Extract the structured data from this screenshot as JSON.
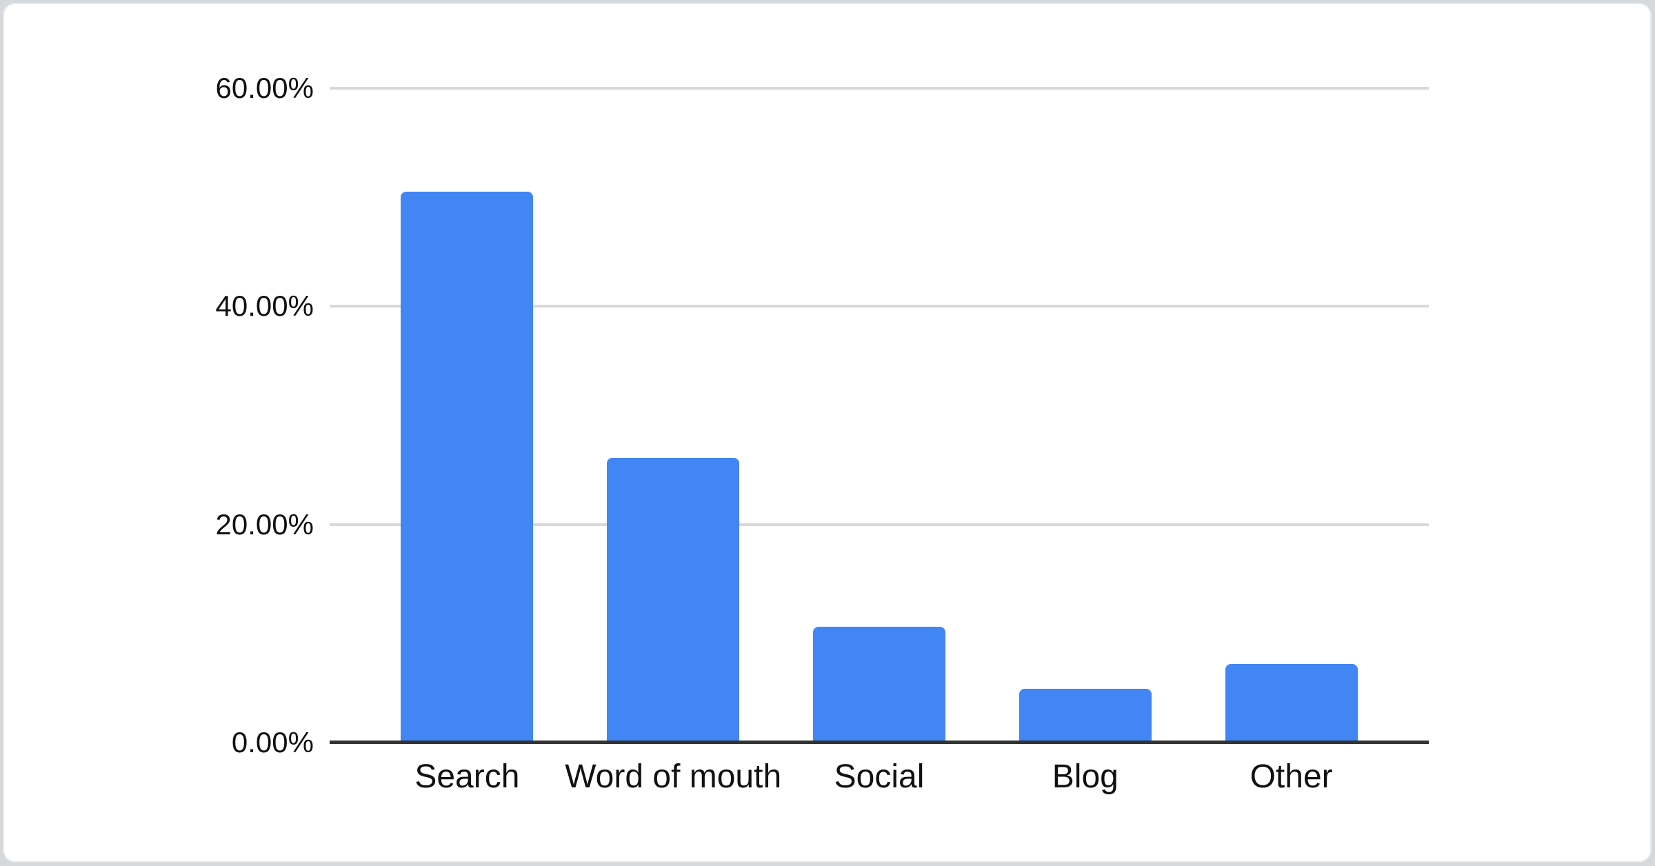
{
  "page": {
    "background_color": "#d6d9dc",
    "card_background_color": "#ffffff"
  },
  "chart_data": {
    "type": "bar",
    "title": "",
    "xlabel": "",
    "ylabel": "",
    "categories": [
      "Search",
      "Word of mouth",
      "Social",
      "Blog",
      "Other"
    ],
    "values": [
      50.5,
      26.1,
      10.6,
      4.9,
      7.2
    ],
    "value_format": "percent",
    "ylim": [
      0,
      60
    ],
    "y_ticks": [
      {
        "label": "60.00%",
        "value": 60
      },
      {
        "label": "40.00%",
        "value": 40
      },
      {
        "label": "20.00%",
        "value": 20
      },
      {
        "label": "0.00%",
        "value": 0
      }
    ],
    "grid": true,
    "legend": "none",
    "bar_color": "#4285F4",
    "gridline_color": "#d9d9d9",
    "axis_line_color": "#333333",
    "label_color": "#111111"
  }
}
